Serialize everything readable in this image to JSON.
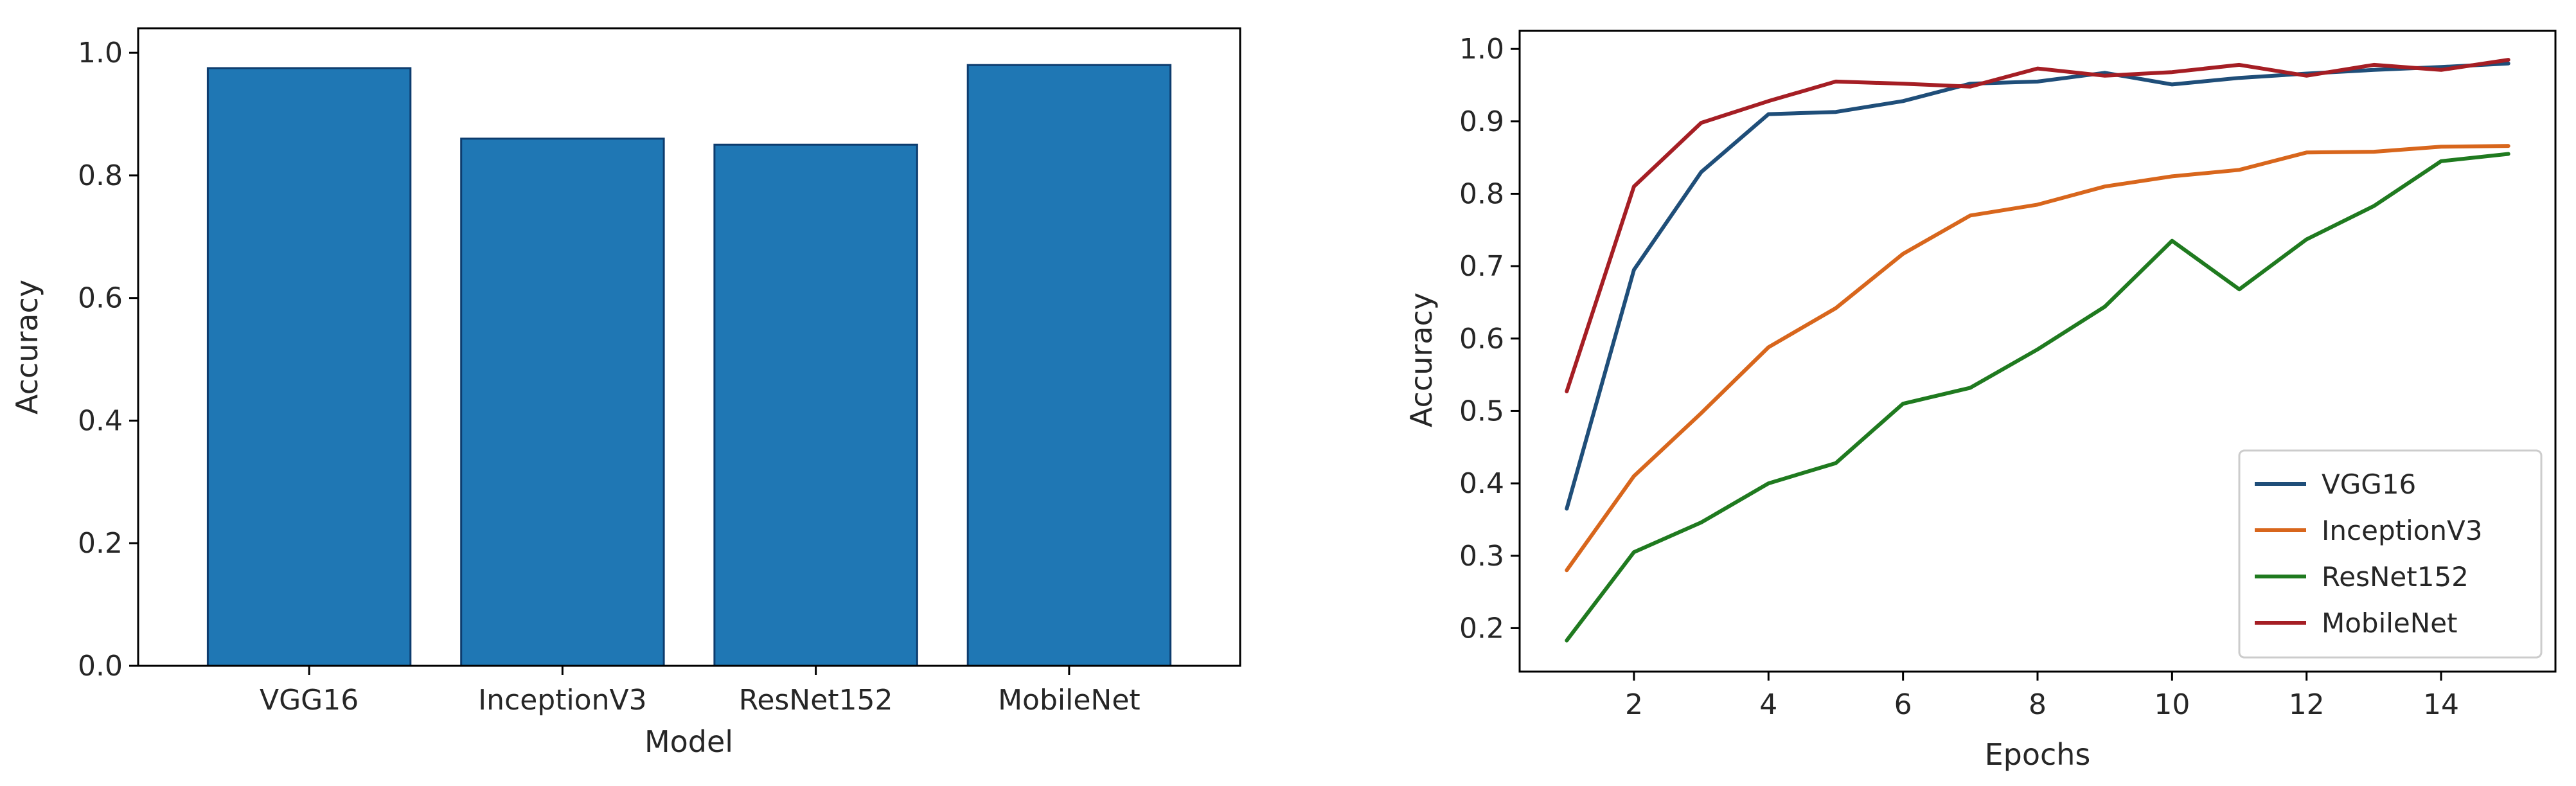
{
  "chart_data": [
    {
      "type": "bar",
      "categories": [
        "VGG16",
        "InceptionV3",
        "ResNet152",
        "MobileNet"
      ],
      "values": [
        0.975,
        0.86,
        0.85,
        0.98
      ],
      "xlabel": "Model",
      "ylabel": "Accuracy",
      "ylim": [
        0,
        1.04
      ],
      "yticks": [
        0.0,
        0.2,
        0.4,
        0.6,
        0.8,
        1.0
      ],
      "ytick_labels": [
        "0.0",
        "0.2",
        "0.4",
        "0.6",
        "0.8",
        "1.0"
      ],
      "grid": false,
      "colors": {
        "bar_fill": "#1f77b4",
        "bar_edge": "#0d3c6e"
      }
    },
    {
      "type": "line",
      "x": [
        1,
        2,
        3,
        4,
        5,
        6,
        7,
        8,
        9,
        10,
        11,
        12,
        13,
        14,
        15
      ],
      "series": [
        {
          "name": "VGG16",
          "color": "#1f4e79",
          "values": [
            0.365,
            0.695,
            0.83,
            0.91,
            0.913,
            0.928,
            0.952,
            0.955,
            0.967,
            0.951,
            0.96,
            0.966,
            0.971,
            0.975,
            0.98
          ]
        },
        {
          "name": "InceptionV3",
          "color": "#d8661c",
          "values": [
            0.28,
            0.41,
            0.497,
            0.588,
            0.642,
            0.717,
            0.77,
            0.785,
            0.81,
            0.824,
            0.833,
            0.857,
            0.858,
            0.865,
            0.866
          ]
        },
        {
          "name": "ResNet152",
          "color": "#1f7a1f",
          "values": [
            0.183,
            0.305,
            0.346,
            0.4,
            0.428,
            0.51,
            0.532,
            0.585,
            0.644,
            0.735,
            0.668,
            0.737,
            0.783,
            0.845,
            0.855
          ]
        },
        {
          "name": "MobileNet",
          "color": "#a51e24",
          "values": [
            0.527,
            0.81,
            0.898,
            0.928,
            0.955,
            0.952,
            0.948,
            0.973,
            0.963,
            0.968,
            0.978,
            0.963,
            0.978,
            0.971,
            0.985
          ]
        }
      ],
      "xlabel": "Epochs",
      "ylabel": "Accuracy",
      "xlim": [
        0.3,
        15.7
      ],
      "ylim": [
        0.14,
        1.025
      ],
      "xticks": [
        2,
        4,
        6,
        8,
        10,
        12,
        14
      ],
      "xtick_labels": [
        "2",
        "4",
        "6",
        "8",
        "10",
        "12",
        "14"
      ],
      "yticks": [
        0.2,
        0.3,
        0.4,
        0.5,
        0.6,
        0.7,
        0.8,
        0.9,
        1.0
      ],
      "ytick_labels": [
        "0.2",
        "0.3",
        "0.4",
        "0.5",
        "0.6",
        "0.7",
        "0.8",
        "0.9",
        "1.0"
      ],
      "grid": false,
      "legend": "bottom-right"
    }
  ]
}
